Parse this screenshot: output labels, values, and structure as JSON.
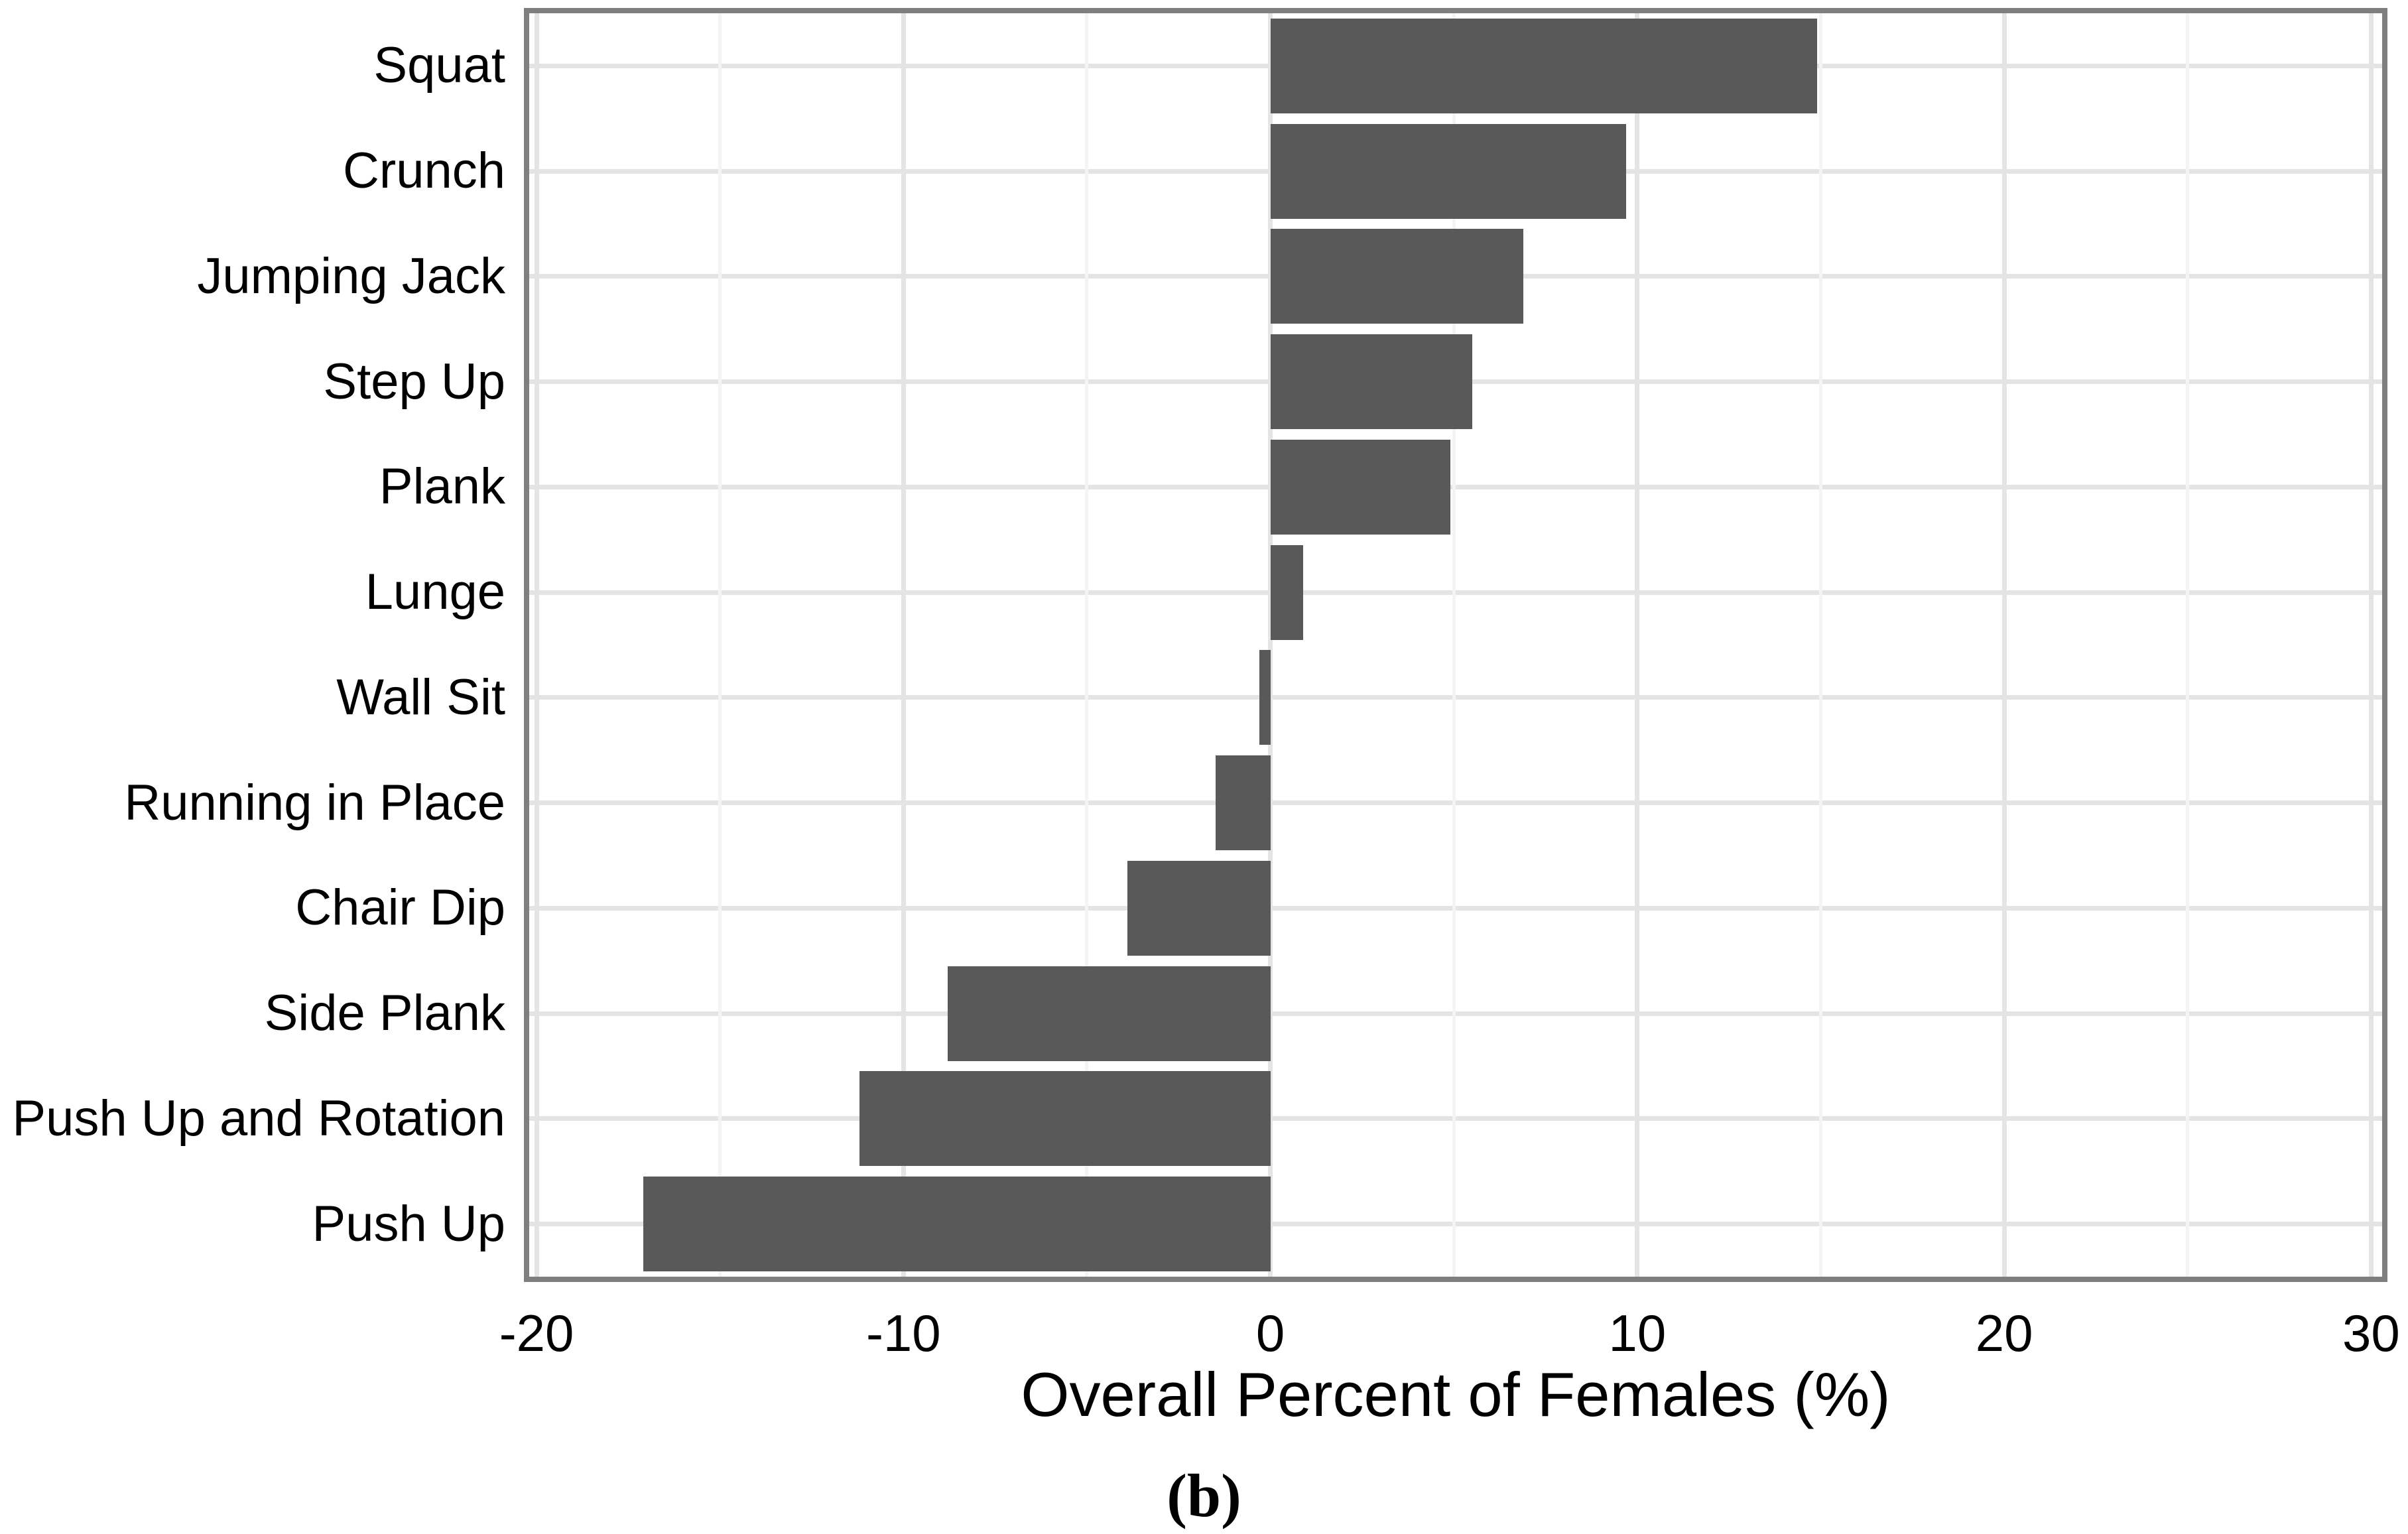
{
  "caption": "(b)",
  "colors": {
    "bar_fill": "#595959",
    "panel_border": "#7f7f7f",
    "major_grid": "#e4e4e4",
    "minor_grid": "#f4f4f4",
    "text": "#000000",
    "background": "#ffffff"
  },
  "chart_data": {
    "type": "bar",
    "orientation": "horizontal",
    "title": "",
    "xlabel": "Overall Percent of Females (%)",
    "ylabel": "",
    "categories": [
      "Squat",
      "Crunch",
      "Jumping Jack",
      "Step Up",
      "Plank",
      "Lunge",
      "Wall Sit",
      "Running in Place",
      "Chair Dip",
      "Side Plank",
      "Push Up and Rotation",
      "Push Up"
    ],
    "values": [
      14.9,
      9.7,
      6.9,
      5.5,
      4.9,
      0.9,
      -0.3,
      -1.5,
      -3.9,
      -8.8,
      -11.2,
      -17.1
    ],
    "x_ticks": [
      -20,
      -10,
      0,
      10,
      20,
      30
    ],
    "x_tick_labels": [
      "-20",
      "-10",
      "0",
      "10",
      "20",
      "30"
    ],
    "x_minor_ticks": [
      -15,
      -5,
      5,
      15,
      25
    ],
    "xlim": [
      -20.2,
      30.3
    ],
    "bar_width_fraction": 0.9,
    "grid": "vertical major+minor, horizontal major at category centers",
    "legend": "none"
  }
}
